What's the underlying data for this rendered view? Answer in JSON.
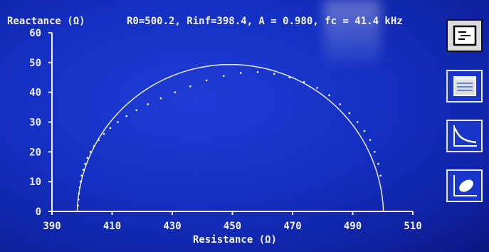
{
  "header": {
    "ylabel": "Reactance (Ω)",
    "params": "R0=500.2, Rinf=398.4, A = 0.980, fc = 41.4 kHz"
  },
  "chart_data": {
    "type": "scatter",
    "title": "",
    "xlabel": "Resistance (Ω)",
    "ylabel": "Reactance (Ω)",
    "xlim": [
      390,
      510
    ],
    "ylim": [
      0,
      60
    ],
    "x_ticks": [
      "390",
      "410",
      "430",
      "450",
      "470",
      "490",
      "510"
    ],
    "y_ticks": [
      "0",
      "10",
      "20",
      "30",
      "40",
      "50",
      "60"
    ],
    "grid": false,
    "fit": {
      "R0": 500.2,
      "Rinf": 398.4,
      "A": 0.98
    },
    "series": [
      {
        "x": [
          398.6,
          398.8,
          399.0,
          399.2,
          399.5,
          399.9,
          400.4,
          401.0,
          401.8,
          402.8,
          404.0,
          405.5,
          407.3,
          409.4,
          411.9,
          414.8,
          418.1,
          421.9,
          426.2,
          430.9,
          436.0,
          441.4,
          447.1,
          452.8,
          458.4,
          463.9,
          469.0,
          473.8,
          478.2,
          482.2,
          485.8,
          488.9,
          491.6,
          493.9,
          495.8,
          497.3,
          498.5,
          499.3
        ],
        "y": [
          2,
          4,
          6,
          8,
          10,
          12,
          14,
          16,
          18,
          20,
          22,
          24,
          26,
          28,
          30,
          32,
          34,
          36,
          38,
          40,
          42,
          44,
          45.5,
          46.5,
          46.8,
          46.2,
          45,
          43.5,
          41.5,
          39,
          36,
          33,
          30,
          27,
          24,
          20,
          16,
          12
        ]
      }
    ]
  },
  "sidebar": {
    "buttons": [
      {
        "name": "report-view-icon",
        "active": true
      },
      {
        "name": "table-view-icon",
        "active": false
      },
      {
        "name": "decay-curve-icon",
        "active": false
      },
      {
        "name": "ellipse-plot-icon",
        "active": false
      }
    ]
  }
}
